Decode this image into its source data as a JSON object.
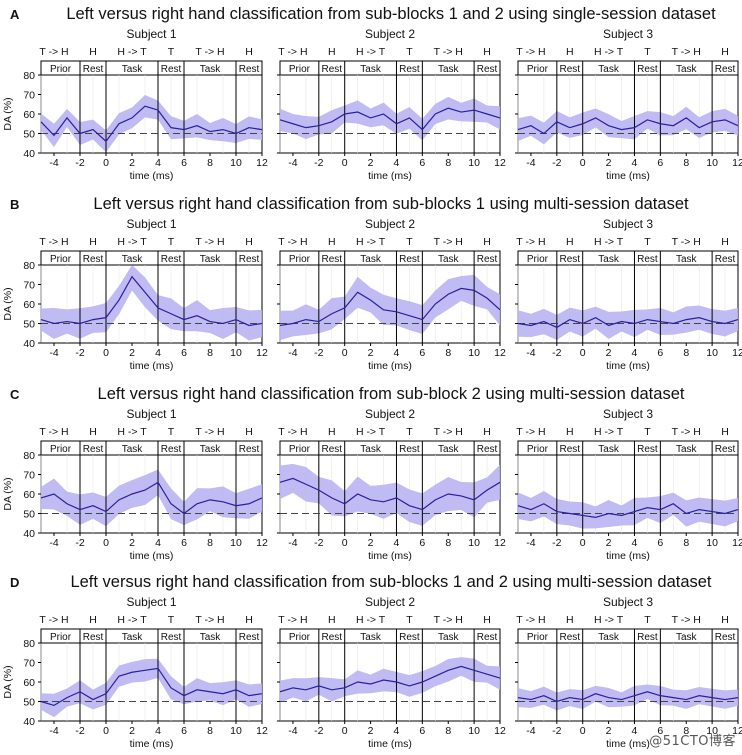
{
  "figure": {
    "watermark": "@51CTO博客",
    "panel_letters": [
      "A",
      "B",
      "C",
      "D"
    ],
    "row_titles": [
      "Left versus right hand classification from sub-blocks 1 and 2 using single-session dataset",
      "Left versus right hand classification from sub-blocks 1 using multi-session dataset",
      "Left versus right hand classification from sub-block 2 using multi-session dataset",
      "Left versus right hand classification from sub-blocks 1 and 2 using multi-session dataset"
    ],
    "subject_titles": [
      "Subject 1",
      "Subject 2",
      "Subject 3"
    ],
    "ylabel": "DA (%)",
    "xlabel": "time (ms)",
    "xticks": [
      -4,
      -2,
      0,
      2,
      4,
      6,
      8,
      10,
      12
    ],
    "xlim": [
      -5,
      12
    ],
    "yticks": [
      40,
      50,
      60,
      70,
      80
    ],
    "ylim": [
      40,
      80
    ],
    "chance_level": 50,
    "phase_labels_top": [
      {
        "label": "T -> H",
        "x": -4
      },
      {
        "label": "H",
        "x": -1
      },
      {
        "label": "H -> T",
        "x": 2
      },
      {
        "label": "T",
        "x": 5
      },
      {
        "label": "T -> H",
        "x": 8
      },
      {
        "label": "H",
        "x": 11
      }
    ],
    "phase_boxes": [
      {
        "label": "Prior",
        "from": -5,
        "to": -2
      },
      {
        "label": "Rest",
        "from": -2,
        "to": 0
      },
      {
        "label": "Task",
        "from": 0,
        "to": 4
      },
      {
        "label": "Rest",
        "from": 4,
        "to": 6
      },
      {
        "label": "Task",
        "from": 6,
        "to": 10
      },
      {
        "label": "Rest",
        "from": 10,
        "to": 12
      }
    ],
    "colors": {
      "line": "#2a1f9e",
      "band": "#b9b4f2",
      "chance": "#444444",
      "text": "#111111"
    }
  },
  "chart_data": [
    {
      "type": "line",
      "panel": "A",
      "subject": "Subject 1",
      "x": [
        -5,
        -4,
        -3,
        -2,
        -1,
        0,
        1,
        2,
        3,
        4,
        5,
        6,
        7,
        8,
        9,
        10,
        11,
        12
      ],
      "series": [
        {
          "values": [
            56,
            49,
            58,
            50,
            52,
            46,
            55,
            58,
            64,
            62,
            53,
            52,
            54,
            51,
            52,
            50,
            53,
            52
          ]
        }
      ],
      "band_halfwidth": 6,
      "ylim": [
        40,
        80
      ]
    },
    {
      "type": "line",
      "panel": "A",
      "subject": "Subject 2",
      "x": [
        -5,
        -4,
        -3,
        -2,
        -1,
        0,
        1,
        2,
        3,
        4,
        5,
        6,
        7,
        8,
        9,
        10,
        11,
        12
      ],
      "series": [
        {
          "values": [
            57,
            55,
            53,
            54,
            56,
            60,
            61,
            58,
            60,
            55,
            58,
            52,
            60,
            63,
            61,
            62,
            60,
            58
          ]
        }
      ],
      "band_halfwidth": 6,
      "ylim": [
        40,
        80
      ]
    },
    {
      "type": "line",
      "panel": "A",
      "subject": "Subject 3",
      "x": [
        -5,
        -4,
        -3,
        -2,
        -1,
        0,
        1,
        2,
        3,
        4,
        5,
        6,
        7,
        8,
        9,
        10,
        11,
        12
      ],
      "series": [
        {
          "values": [
            52,
            54,
            50,
            56,
            53,
            55,
            58,
            54,
            52,
            53,
            57,
            55,
            54,
            58,
            53,
            56,
            57,
            54
          ]
        }
      ],
      "band_halfwidth": 6,
      "ylim": [
        40,
        80
      ]
    },
    {
      "type": "line",
      "panel": "B",
      "subject": "Subject 1",
      "x": [
        -5,
        -4,
        -3,
        -2,
        -1,
        0,
        1,
        2,
        3,
        4,
        5,
        6,
        7,
        8,
        9,
        10,
        11,
        12
      ],
      "series": [
        {
          "values": [
            52,
            50,
            51,
            50,
            52,
            53,
            62,
            74,
            66,
            58,
            55,
            52,
            54,
            51,
            50,
            52,
            49,
            50
          ]
        }
      ],
      "band_halfwidth": 8,
      "ylim": [
        40,
        80
      ]
    },
    {
      "type": "line",
      "panel": "B",
      "subject": "Subject 2",
      "x": [
        -5,
        -4,
        -3,
        -2,
        -1,
        0,
        1,
        2,
        3,
        4,
        5,
        6,
        7,
        8,
        9,
        10,
        11,
        12
      ],
      "series": [
        {
          "values": [
            49,
            50,
            52,
            51,
            55,
            58,
            66,
            62,
            57,
            56,
            54,
            52,
            60,
            65,
            68,
            67,
            63,
            57
          ]
        }
      ],
      "band_halfwidth": 8,
      "ylim": [
        40,
        80
      ]
    },
    {
      "type": "line",
      "panel": "B",
      "subject": "Subject 3",
      "x": [
        -5,
        -4,
        -3,
        -2,
        -1,
        0,
        1,
        2,
        3,
        4,
        5,
        6,
        7,
        8,
        9,
        10,
        11,
        12
      ],
      "series": [
        {
          "values": [
            50,
            49,
            51,
            48,
            52,
            50,
            53,
            49,
            51,
            50,
            52,
            51,
            50,
            52,
            53,
            51,
            50,
            52
          ]
        }
      ],
      "band_halfwidth": 7,
      "ylim": [
        40,
        80
      ]
    },
    {
      "type": "line",
      "panel": "C",
      "subject": "Subject 1",
      "x": [
        -5,
        -4,
        -3,
        -2,
        -1,
        0,
        1,
        2,
        3,
        4,
        5,
        6,
        7,
        8,
        9,
        10,
        11,
        12
      ],
      "series": [
        {
          "values": [
            58,
            60,
            55,
            52,
            54,
            51,
            57,
            60,
            62,
            66,
            55,
            50,
            55,
            57,
            56,
            54,
            55,
            58
          ]
        }
      ],
      "band_halfwidth": 8,
      "ylim": [
        40,
        80
      ]
    },
    {
      "type": "line",
      "panel": "C",
      "subject": "Subject 2",
      "x": [
        -5,
        -4,
        -3,
        -2,
        -1,
        0,
        1,
        2,
        3,
        4,
        5,
        6,
        7,
        8,
        9,
        10,
        11,
        12
      ],
      "series": [
        {
          "values": [
            66,
            68,
            65,
            62,
            58,
            55,
            60,
            57,
            56,
            58,
            54,
            52,
            57,
            60,
            59,
            57,
            62,
            66
          ]
        }
      ],
      "band_halfwidth": 9,
      "ylim": [
        40,
        80
      ]
    },
    {
      "type": "line",
      "panel": "C",
      "subject": "Subject 3",
      "x": [
        -5,
        -4,
        -3,
        -2,
        -1,
        0,
        1,
        2,
        3,
        4,
        5,
        6,
        7,
        8,
        9,
        10,
        11,
        12
      ],
      "series": [
        {
          "values": [
            54,
            52,
            55,
            51,
            50,
            49,
            48,
            50,
            49,
            51,
            53,
            52,
            55,
            50,
            52,
            51,
            50,
            52
          ]
        }
      ],
      "band_halfwidth": 7,
      "ylim": [
        40,
        80
      ]
    },
    {
      "type": "line",
      "panel": "D",
      "subject": "Subject 1",
      "x": [
        -5,
        -4,
        -3,
        -2,
        -1,
        0,
        1,
        2,
        3,
        4,
        5,
        6,
        7,
        8,
        9,
        10,
        11,
        12
      ],
      "series": [
        {
          "values": [
            50,
            48,
            52,
            55,
            51,
            54,
            63,
            65,
            66,
            67,
            57,
            53,
            56,
            55,
            54,
            56,
            53,
            54
          ]
        }
      ],
      "band_halfwidth": 6,
      "ylim": [
        40,
        80
      ]
    },
    {
      "type": "line",
      "panel": "D",
      "subject": "Subject 2",
      "x": [
        -5,
        -4,
        -3,
        -2,
        -1,
        0,
        1,
        2,
        3,
        4,
        5,
        6,
        7,
        8,
        9,
        10,
        11,
        12
      ],
      "series": [
        {
          "values": [
            55,
            57,
            56,
            58,
            56,
            57,
            60,
            59,
            61,
            60,
            58,
            60,
            63,
            66,
            68,
            66,
            64,
            62
          ]
        }
      ],
      "band_halfwidth": 6,
      "ylim": [
        40,
        80
      ]
    },
    {
      "type": "line",
      "panel": "D",
      "subject": "Subject 3",
      "x": [
        -5,
        -4,
        -3,
        -2,
        -1,
        0,
        1,
        2,
        3,
        4,
        5,
        6,
        7,
        8,
        9,
        10,
        11,
        12
      ],
      "series": [
        {
          "values": [
            52,
            51,
            53,
            50,
            52,
            51,
            54,
            52,
            51,
            53,
            55,
            53,
            52,
            51,
            53,
            52,
            51,
            52
          ]
        }
      ],
      "band_halfwidth": 5,
      "ylim": [
        40,
        80
      ]
    }
  ]
}
